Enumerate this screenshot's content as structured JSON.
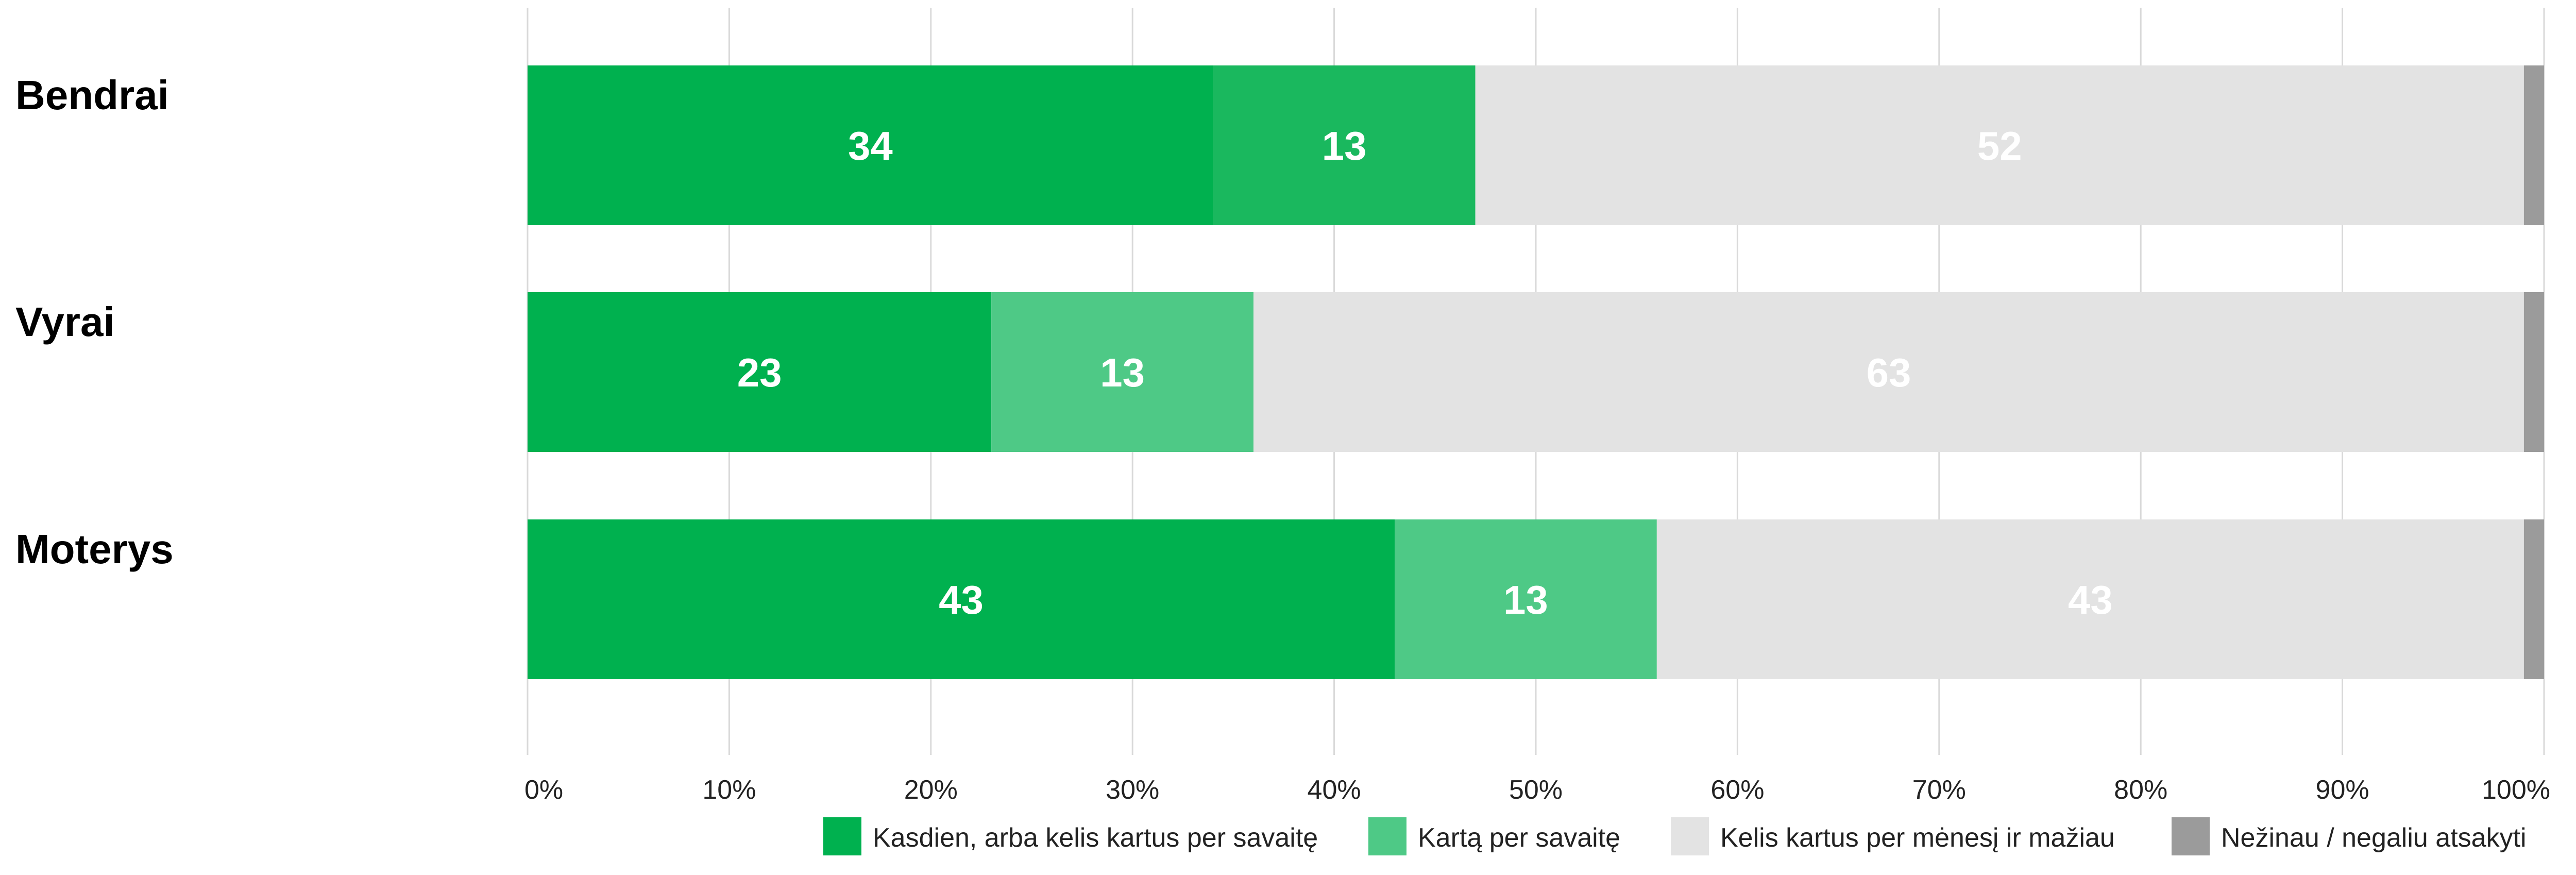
{
  "chart_data": {
    "type": "bar",
    "orientation": "horizontal",
    "stacked": true,
    "title": "",
    "xlabel": "",
    "ylabel": "",
    "xlim": [
      0,
      100
    ],
    "grid": true,
    "legend_position": "bottom-right",
    "categories": [
      "Bendrai",
      "Vyrai",
      "Moterys"
    ],
    "x_ticks": [
      "0%",
      "10%",
      "20%",
      "30%",
      "40%",
      "50%",
      "60%",
      "70%",
      "80%",
      "90%",
      "100%"
    ],
    "x_tick_values": [
      0,
      10,
      20,
      30,
      40,
      50,
      60,
      70,
      80,
      90,
      100
    ],
    "series": [
      {
        "name": "Kasdien, arba kelis kartus per savaitę",
        "color": "#00b14f",
        "values": [
          34,
          23,
          43
        ],
        "labels": [
          "34",
          "23",
          "43"
        ]
      },
      {
        "name": "Kartą per savaitę",
        "colors": [
          "#1ab85e",
          "#4ec986",
          "#4ec986"
        ],
        "legend_color": "#4ec986",
        "values": [
          13,
          13,
          13
        ],
        "labels": [
          "13",
          "13",
          "13"
        ]
      },
      {
        "name": "Kelis kartus per mėnesį ir mažiau",
        "color": "#e3e3e3",
        "values": [
          52,
          63,
          43
        ],
        "labels": [
          "52",
          "63",
          "43"
        ]
      },
      {
        "name": "Nežinau / negaliu atsakyti",
        "color": "#9b9b9b",
        "values": [
          1,
          1,
          1
        ],
        "labels": [
          "",
          "",
          ""
        ]
      }
    ]
  }
}
